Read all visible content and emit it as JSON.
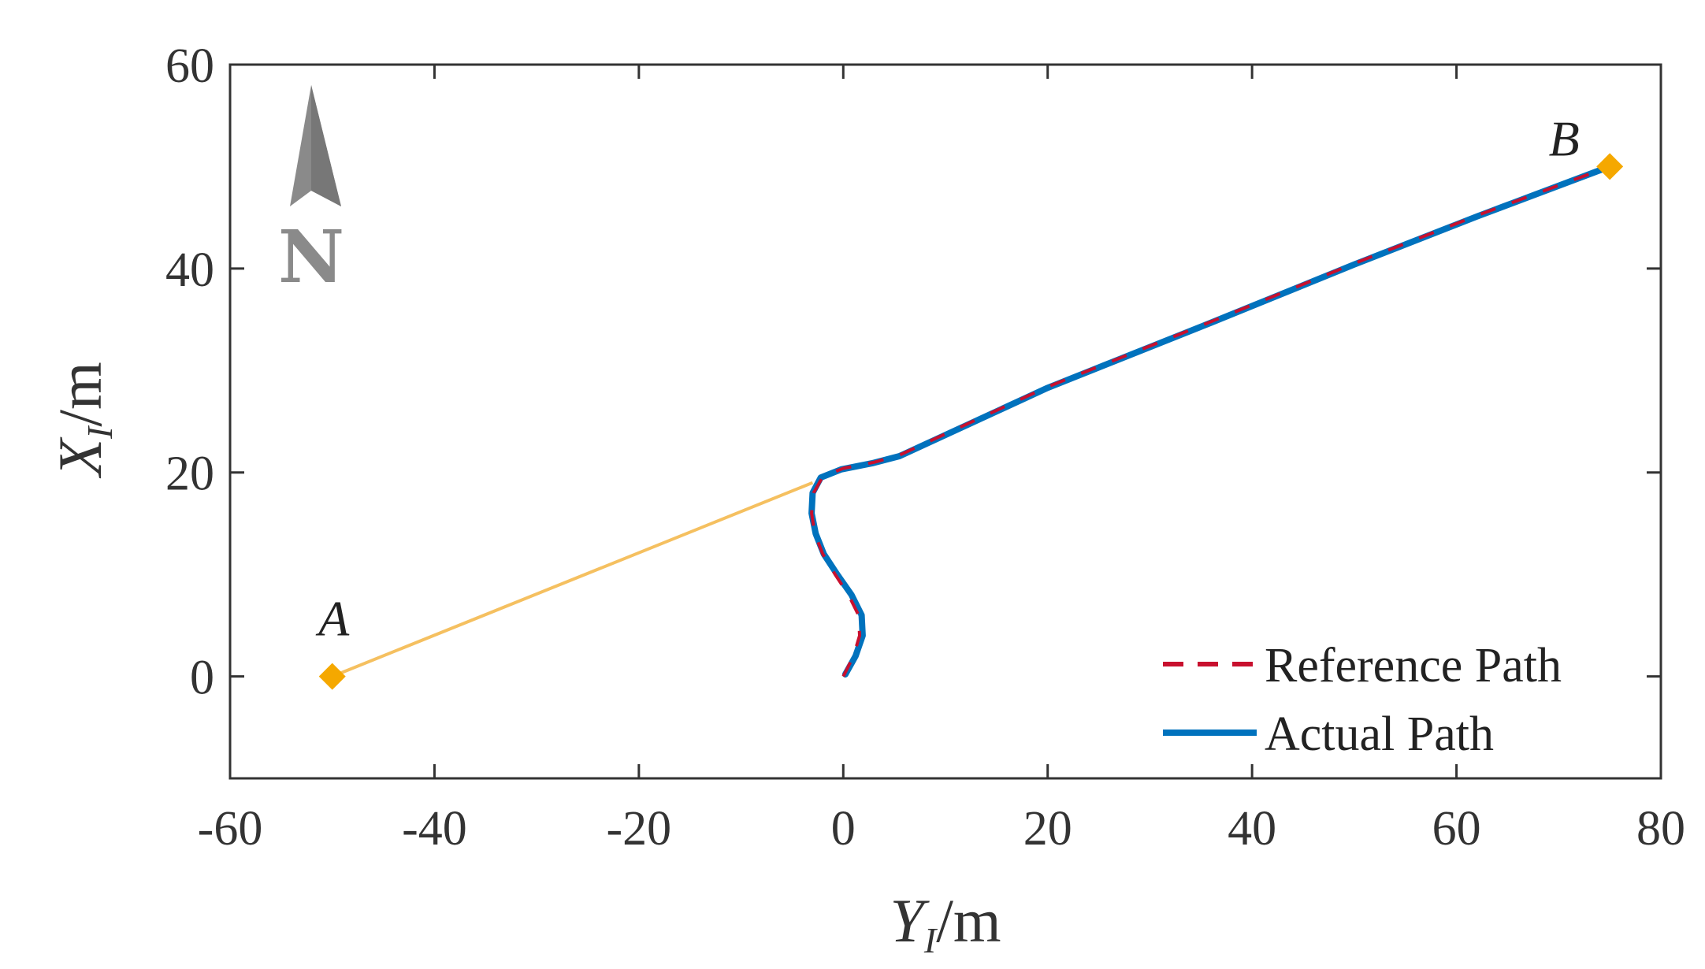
{
  "chart_data": {
    "type": "line",
    "title": "",
    "xlabel": {
      "symbol": "Y",
      "subscript": "I",
      "unit": "/m"
    },
    "ylabel": {
      "symbol": "X",
      "subscript": "I",
      "unit": "/m"
    },
    "xlim": [
      -60,
      80
    ],
    "ylim": [
      -10,
      60
    ],
    "xticks": [
      -60,
      -40,
      -20,
      0,
      20,
      40,
      60,
      80
    ],
    "yticks": [
      0,
      20,
      40,
      60
    ],
    "x_tick_labels": [
      "-60",
      "-40",
      "-20",
      "0",
      "20",
      "40",
      "60",
      "80"
    ],
    "y_tick_labels": [
      "0",
      "20",
      "40",
      "60"
    ],
    "grid": false,
    "legend_position": "bottom-right",
    "guide_line": {
      "color": "#f5c060",
      "points": [
        [
          -50,
          0
        ],
        [
          -3,
          19
        ]
      ]
    },
    "series": [
      {
        "name": "Reference Path",
        "color": "#c8102e",
        "style": "dashed",
        "points": [
          [
            0,
            0
          ],
          [
            1,
            2
          ],
          [
            1.6,
            4
          ],
          [
            1.5,
            6
          ],
          [
            0.5,
            8
          ],
          [
            -0.8,
            10
          ],
          [
            -2,
            12
          ],
          [
            -2.8,
            14
          ],
          [
            -3.1,
            16
          ],
          [
            -2.9,
            18
          ],
          [
            -2,
            19.6
          ],
          [
            0,
            20.4
          ],
          [
            3,
            21
          ],
          [
            5.5,
            21.7
          ],
          [
            20,
            28.4
          ],
          [
            36,
            34.8
          ],
          [
            50,
            40.5
          ],
          [
            62,
            45.2
          ],
          [
            75,
            50
          ]
        ]
      },
      {
        "name": "Actual Path",
        "color": "#0072bd",
        "style": "solid",
        "points": [
          [
            0.2,
            0.2
          ],
          [
            1.2,
            2
          ],
          [
            1.9,
            4
          ],
          [
            1.8,
            6
          ],
          [
            0.8,
            8
          ],
          [
            -0.6,
            10
          ],
          [
            -1.9,
            12
          ],
          [
            -2.7,
            14
          ],
          [
            -3.1,
            16
          ],
          [
            -3,
            18
          ],
          [
            -2.2,
            19.5
          ],
          [
            -0.2,
            20.3
          ],
          [
            2.8,
            20.9
          ],
          [
            5.5,
            21.6
          ],
          [
            20,
            28.3
          ],
          [
            36,
            34.7
          ],
          [
            50,
            40.4
          ],
          [
            62,
            45.1
          ],
          [
            75,
            50
          ]
        ]
      }
    ],
    "markers": [
      {
        "label": "A",
        "x": -50,
        "y": 0,
        "color": "#f5a800"
      },
      {
        "label": "B",
        "x": 75,
        "y": 50,
        "color": "#f5a800"
      }
    ],
    "north_arrow": {
      "letter": "N",
      "icon": "north-arrow-icon",
      "color": "#8a8a8a"
    }
  }
}
